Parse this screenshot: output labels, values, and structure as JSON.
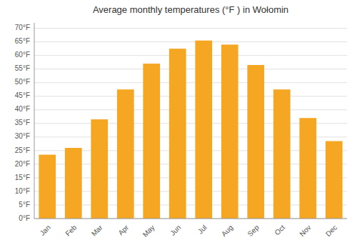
{
  "chart_data": {
    "type": "bar",
    "title": "Average monthly temperatures (°F ) in Wołomin",
    "categories": [
      "Jan",
      "Feb",
      "Mar",
      "Apr",
      "May",
      "Jun",
      "Jul",
      "Aug",
      "Sep",
      "Oct",
      "Nov",
      "Dec"
    ],
    "values": [
      23.5,
      26.0,
      36.5,
      47.5,
      57.0,
      62.5,
      65.5,
      64.0,
      56.5,
      47.5,
      37.0,
      28.5
    ],
    "color": "#F5A623",
    "ylim": [
      0,
      72
    ],
    "yticks": [
      {
        "value": 0,
        "label": "0°F"
      },
      {
        "value": 5,
        "label": "5°F"
      },
      {
        "value": 10,
        "label": "10°F"
      },
      {
        "value": 15,
        "label": "15°F"
      },
      {
        "value": 20,
        "label": "20°F"
      },
      {
        "value": 25,
        "label": "25°F"
      },
      {
        "value": 30,
        "label": "30°F"
      },
      {
        "value": 35,
        "label": "35°F"
      },
      {
        "value": 40,
        "label": "40°F"
      },
      {
        "value": 45,
        "label": "45°F"
      },
      {
        "value": 50,
        "label": "50°F"
      },
      {
        "value": 55,
        "label": "55°F"
      },
      {
        "value": 60,
        "label": "60°F"
      },
      {
        "value": 65,
        "label": "65°F"
      },
      {
        "value": 70,
        "label": "70°F"
      }
    ],
    "grid": true
  }
}
